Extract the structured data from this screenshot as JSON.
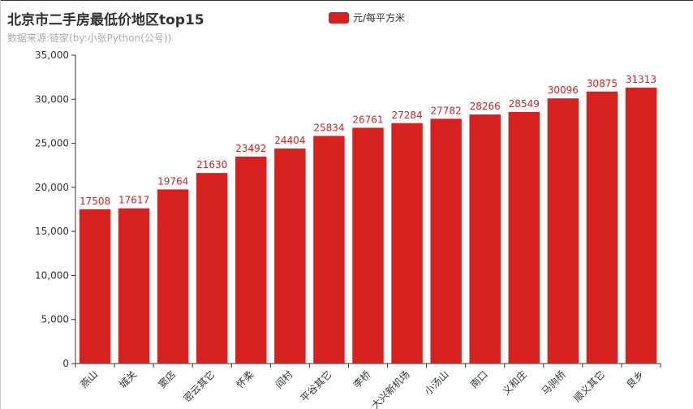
{
  "title": "北京市二手房最低价地区top15",
  "subtitle": "数据来源:链家(by:小张Python(公号))",
  "legend": {
    "label": "元/每平方米",
    "color": "#d7211f"
  },
  "chart_data": {
    "type": "bar",
    "categories": [
      "燕山",
      "城关",
      "窦店",
      "密云其它",
      "怀柔",
      "阎村",
      "平谷其它",
      "李桥",
      "大兴新机场",
      "小汤山",
      "南口",
      "义和庄",
      "马驹桥",
      "顺义其它",
      "良乡"
    ],
    "series": [
      {
        "name": "元/每平方米",
        "values": [
          17508,
          17617,
          19764,
          21630,
          23492,
          24404,
          25834,
          26761,
          27284,
          27782,
          28266,
          28549,
          30096,
          30875,
          31313
        ]
      }
    ],
    "y_ticks": [
      "0",
      "5,000",
      "10,000",
      "15,000",
      "20,000",
      "25,000",
      "30,000",
      "35,000"
    ],
    "ylim": [
      0,
      35000
    ],
    "bar_color": "#d7211f",
    "label_color": "#d7211f",
    "grid": false,
    "legend_position": "top-center"
  }
}
